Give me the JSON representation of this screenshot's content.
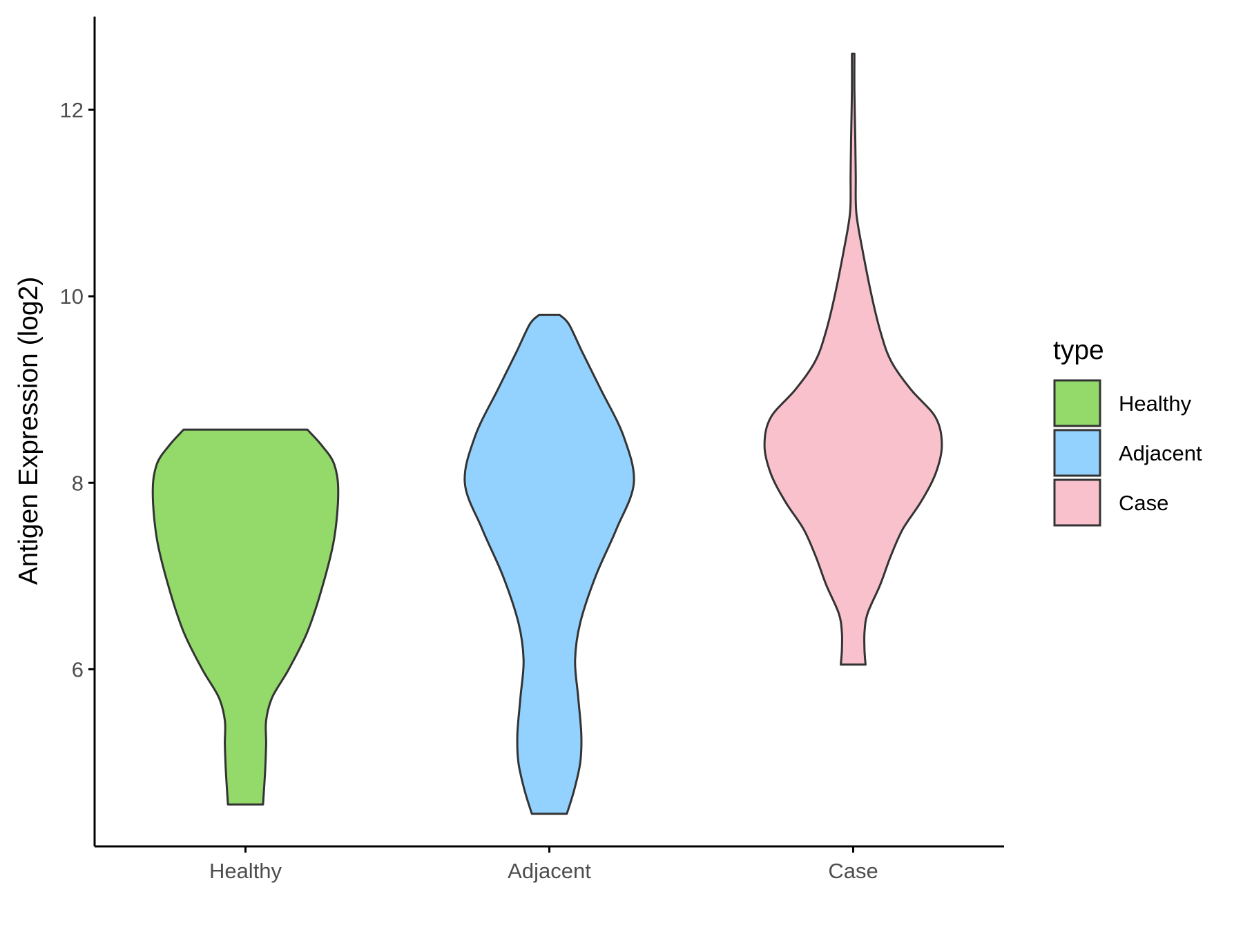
{
  "chart_data": {
    "type": "violin",
    "title": "",
    "xlabel": "",
    "ylabel": "Antigen Expression (log2)",
    "categories": [
      "Healthy",
      "Adjacent",
      "Case"
    ],
    "yticks": [
      6,
      8,
      10,
      12
    ],
    "ylim": [
      4.1,
      13.0
    ],
    "grid": false,
    "legend": {
      "title": "type",
      "placement": "right",
      "entries": [
        "Healthy",
        "Adjacent",
        "Case"
      ]
    },
    "colors": {
      "Healthy": "#93DA6B",
      "Adjacent": "#93D2FE",
      "Case": "#F8C1CC",
      "outline": "#333333"
    },
    "series": [
      {
        "category": "Healthy",
        "min": 4.55,
        "max": 8.57,
        "profile": [
          [
            4.55,
            0.17
          ],
          [
            4.9,
            0.19
          ],
          [
            5.2,
            0.2
          ],
          [
            5.45,
            0.2
          ],
          [
            5.7,
            0.26
          ],
          [
            6.0,
            0.42
          ],
          [
            6.4,
            0.6
          ],
          [
            6.9,
            0.75
          ],
          [
            7.4,
            0.86
          ],
          [
            7.9,
            0.9
          ],
          [
            8.2,
            0.86
          ],
          [
            8.4,
            0.74
          ],
          [
            8.57,
            0.6
          ]
        ]
      },
      {
        "category": "Adjacent",
        "min": 4.45,
        "max": 9.8,
        "profile": [
          [
            4.45,
            0.17
          ],
          [
            4.7,
            0.24
          ],
          [
            5.0,
            0.3
          ],
          [
            5.3,
            0.31
          ],
          [
            5.7,
            0.28
          ],
          [
            6.1,
            0.25
          ],
          [
            6.5,
            0.3
          ],
          [
            7.0,
            0.45
          ],
          [
            7.5,
            0.65
          ],
          [
            8.0,
            0.82
          ],
          [
            8.5,
            0.72
          ],
          [
            9.0,
            0.5
          ],
          [
            9.4,
            0.32
          ],
          [
            9.7,
            0.19
          ],
          [
            9.8,
            0.1
          ]
        ]
      },
      {
        "category": "Case",
        "min": 6.05,
        "max": 12.6,
        "profile": [
          [
            6.05,
            0.12
          ],
          [
            6.2,
            0.11
          ],
          [
            6.4,
            0.11
          ],
          [
            6.6,
            0.14
          ],
          [
            6.9,
            0.26
          ],
          [
            7.2,
            0.36
          ],
          [
            7.5,
            0.48
          ],
          [
            7.8,
            0.66
          ],
          [
            8.1,
            0.8
          ],
          [
            8.4,
            0.86
          ],
          [
            8.7,
            0.8
          ],
          [
            9.0,
            0.56
          ],
          [
            9.3,
            0.37
          ],
          [
            9.6,
            0.27
          ],
          [
            10.0,
            0.18
          ],
          [
            10.5,
            0.09
          ],
          [
            10.9,
            0.03
          ],
          [
            11.3,
            0.025
          ],
          [
            11.7,
            0.02
          ],
          [
            12.2,
            0.012
          ],
          [
            12.6,
            0.012
          ]
        ]
      }
    ]
  }
}
